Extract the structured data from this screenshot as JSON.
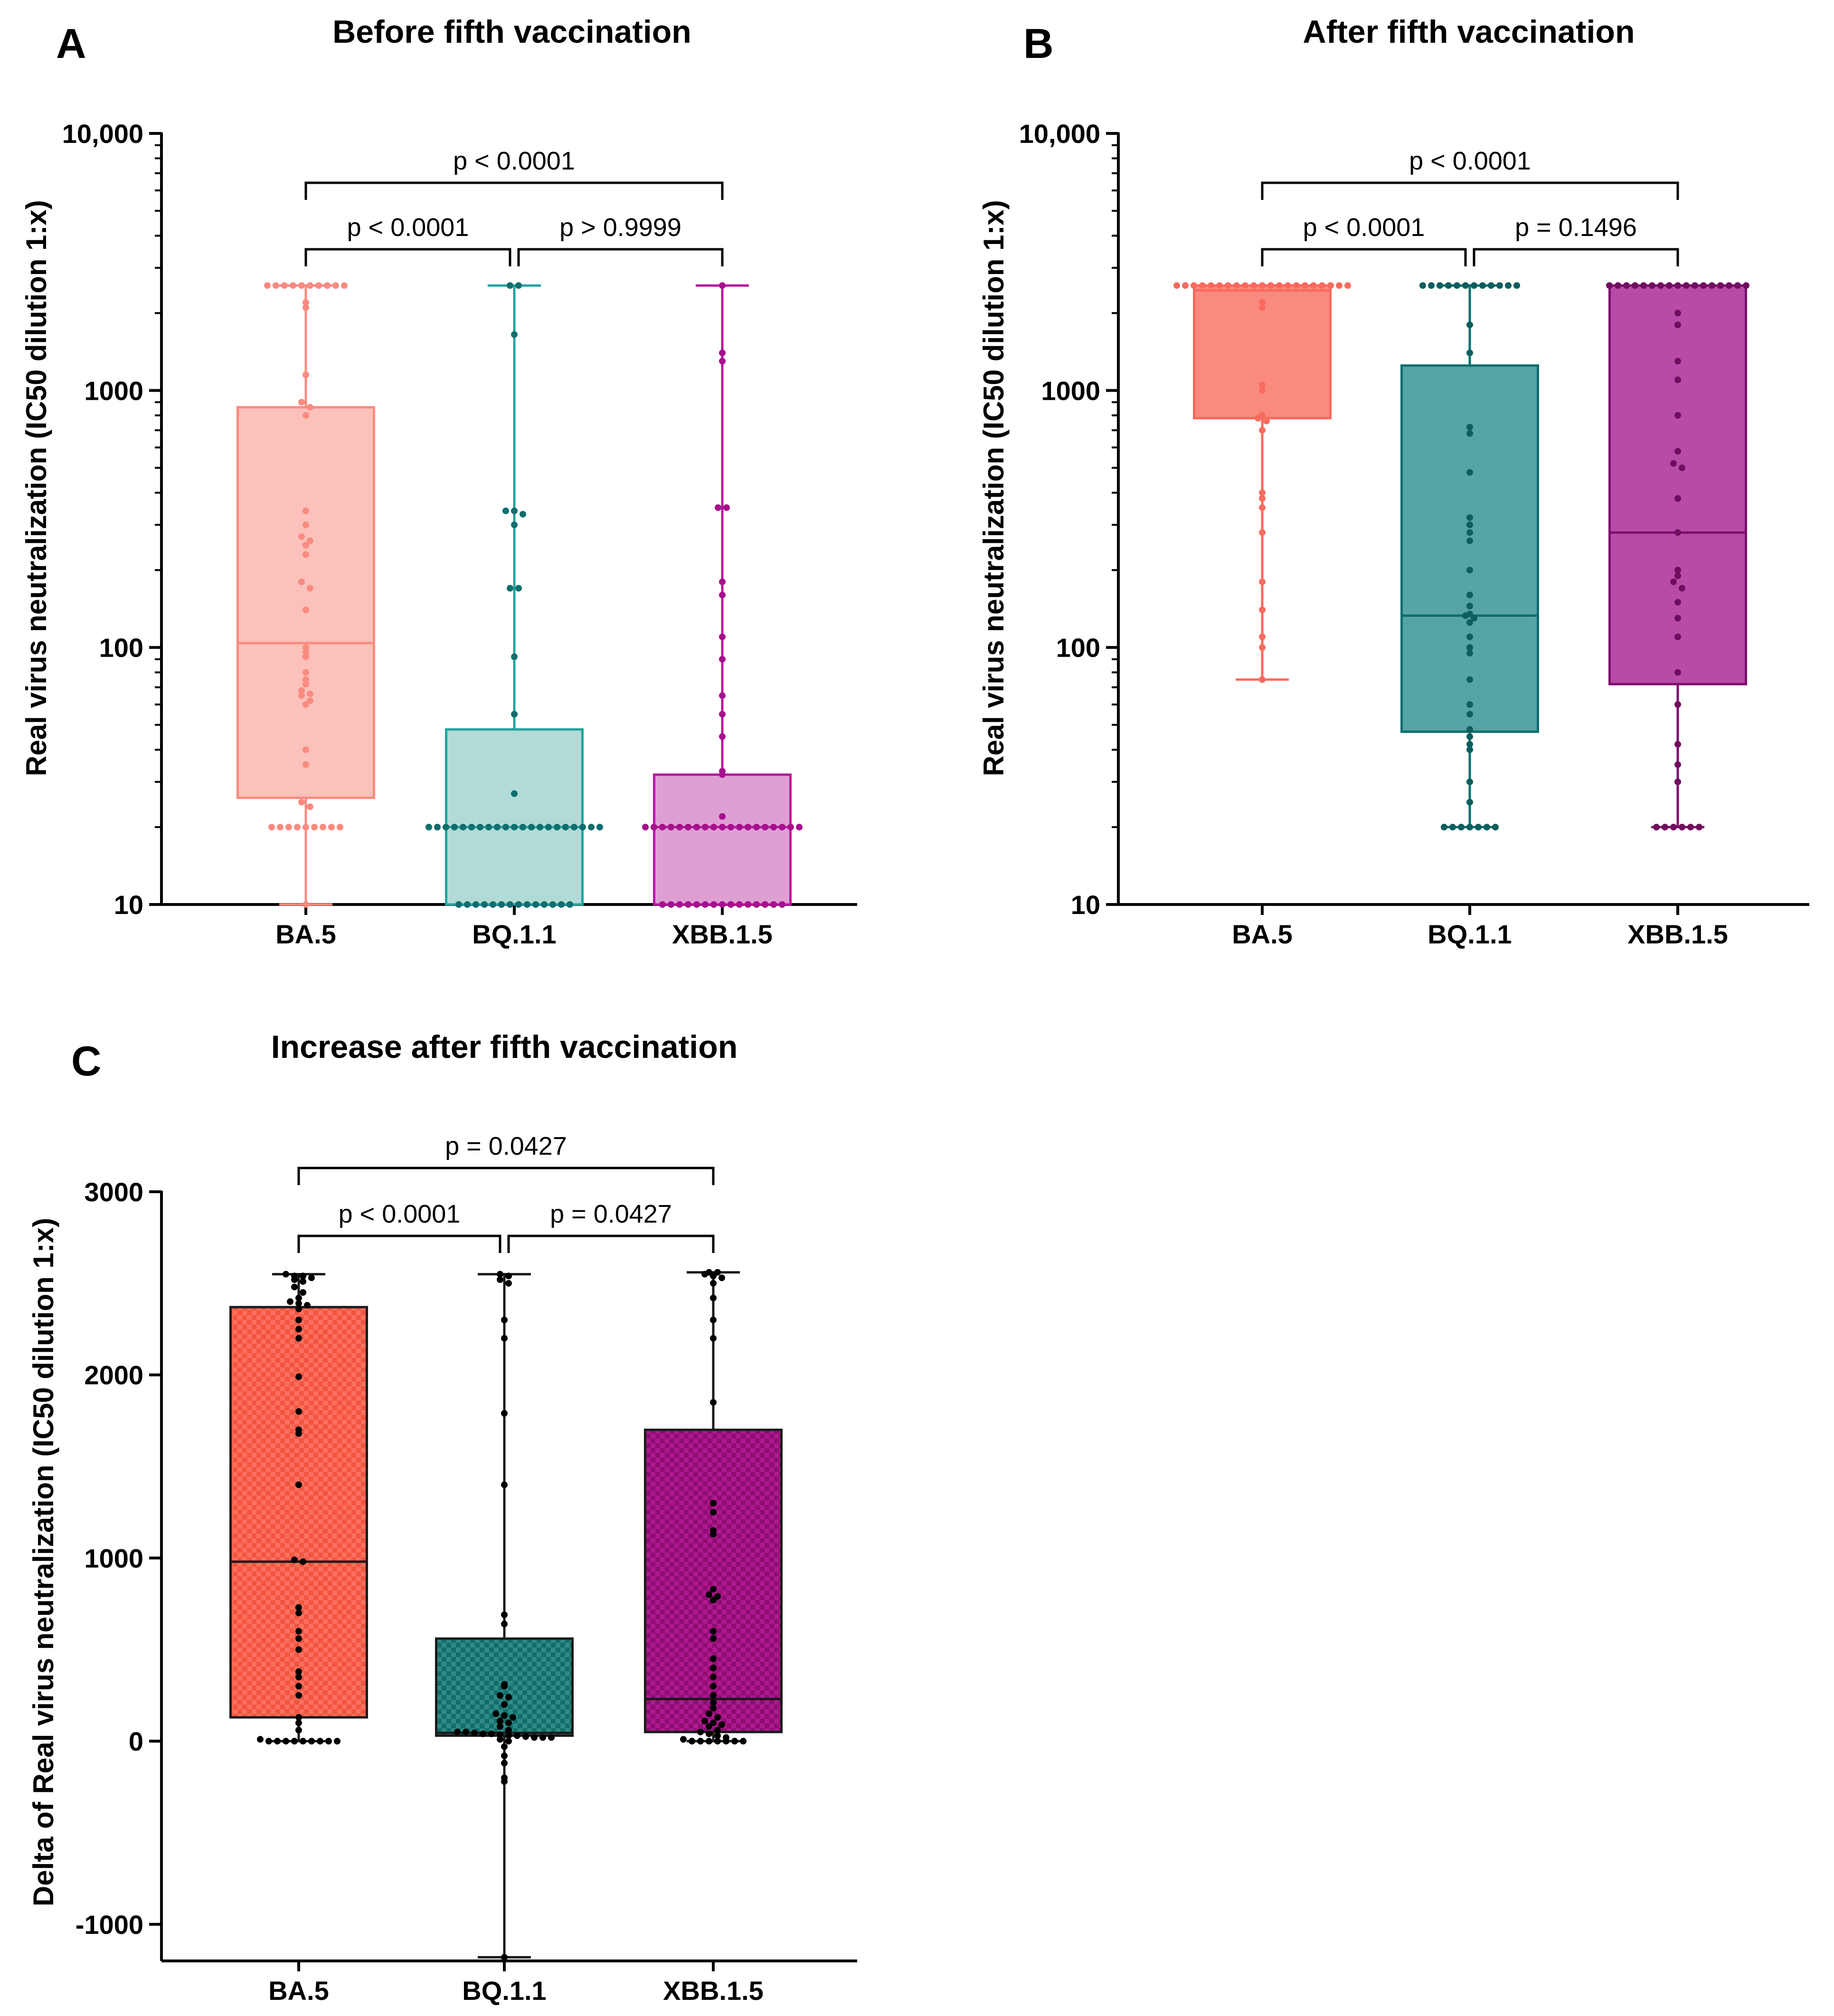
{
  "chart_data": [
    {
      "panel_label": "A",
      "type": "box",
      "title": "Before fifth vaccination",
      "xlabel": "",
      "ylabel": "Real virus neutralization (IC50 dilution 1:x)",
      "yscale": "log",
      "ylim": [
        10,
        10000
      ],
      "yticks": [
        10,
        100,
        1000,
        10000
      ],
      "ytick_labels": [
        "10",
        "100",
        "1000",
        "10,000"
      ],
      "categories": [
        "BA.5",
        "BQ.1.1",
        "XBB.1.5"
      ],
      "style": {
        "pale": true,
        "pattern": false
      },
      "colors": {
        "fill": [
          "#FBC1BA",
          "#B2DBD8",
          "#DEA0D3"
        ],
        "stroke": [
          "#F98B80",
          "#24A3A0",
          "#B7199E"
        ],
        "point": [
          "#F98B80",
          "#0F6E6E",
          "#A6108E"
        ]
      },
      "series": [
        {
          "name": "BA.5",
          "min": 10,
          "q1": 26,
          "median": 104,
          "q3": 860,
          "max": 2560,
          "points": [
            2560,
            2560,
            2560,
            2560,
            2560,
            2560,
            2560,
            2560,
            2560,
            2560,
            2200,
            2100,
            1150,
            900,
            860,
            800,
            340,
            300,
            270,
            260,
            250,
            230,
            180,
            170,
            140,
            100,
            96,
            92,
            80,
            75,
            72,
            68,
            66,
            65,
            62,
            60,
            40,
            35,
            25,
            24,
            20,
            20,
            20,
            20,
            20,
            20,
            20,
            20,
            20,
            10
          ]
        },
        {
          "name": "BQ.1.1",
          "min": 10,
          "q1": 10,
          "median": 20,
          "q3": 48,
          "max": 2560,
          "points": [
            2560,
            2560,
            1650,
            340,
            340,
            330,
            300,
            170,
            170,
            92,
            55,
            27,
            20,
            20,
            20,
            20,
            20,
            20,
            20,
            20,
            20,
            20,
            20,
            20,
            20,
            20,
            20,
            20,
            20,
            20,
            20,
            20,
            20,
            10,
            10,
            10,
            10,
            10,
            10,
            10,
            10,
            10,
            10,
            10,
            10,
            10,
            10
          ]
        },
        {
          "name": "XBB.1.5",
          "min": 10,
          "q1": 10,
          "median": 20,
          "q3": 32,
          "max": 2560,
          "points": [
            2560,
            1400,
            1300,
            350,
            350,
            180,
            160,
            110,
            90,
            65,
            55,
            45,
            33,
            32,
            22,
            20,
            20,
            20,
            20,
            20,
            20,
            20,
            20,
            20,
            20,
            20,
            20,
            20,
            20,
            20,
            20,
            20,
            20,
            20,
            10,
            10,
            10,
            10,
            10,
            10,
            10,
            10,
            10,
            10,
            10,
            10,
            10,
            10,
            10
          ]
        }
      ],
      "annotations": [
        {
          "from": "BA.5",
          "to": "XBB.1.5",
          "text": "p < 0.0001",
          "level": 2
        },
        {
          "from": "BA.5",
          "to": "BQ.1.1",
          "text": "p < 0.0001",
          "level": 1
        },
        {
          "from": "BQ.1.1",
          "to": "XBB.1.5",
          "text": "p > 0.9999",
          "level": 1
        }
      ]
    },
    {
      "panel_label": "B",
      "type": "box",
      "title": "After fifth vaccination",
      "xlabel": "",
      "ylabel": "Real virus neutralization (IC50 dilution 1:x)",
      "yscale": "log",
      "ylim": [
        10,
        10000
      ],
      "yticks": [
        10,
        100,
        1000,
        10000
      ],
      "ytick_labels": [
        "10",
        "100",
        "1000",
        "10,000"
      ],
      "categories": [
        "BA.5",
        "BQ.1.1",
        "XBB.1.5"
      ],
      "style": {
        "pale": false,
        "pattern": false
      },
      "colors": {
        "fill": [
          "#FA8A7E",
          "#55A5A4",
          "#B94BA8"
        ],
        "stroke": [
          "#F86B5E",
          "#0F6E6E",
          "#7F0F6C"
        ],
        "point": [
          "#F86B5E",
          "#0D5E5E",
          "#6F0D5E"
        ]
      },
      "series": [
        {
          "name": "BA.5",
          "min": 75,
          "q1": 780,
          "median": 2450,
          "q3": 2560,
          "max": 2560,
          "points": [
            2560,
            2560,
            2560,
            2560,
            2560,
            2560,
            2560,
            2560,
            2560,
            2560,
            2560,
            2560,
            2560,
            2560,
            2560,
            2560,
            2560,
            2560,
            2560,
            2560,
            2560,
            2200,
            2100,
            1050,
            1000,
            800,
            780,
            760,
            700,
            400,
            380,
            350,
            280,
            180,
            140,
            110,
            100,
            75
          ]
        },
        {
          "name": "BQ.1.1",
          "min": 20,
          "q1": 47,
          "median": 133,
          "q3": 1250,
          "max": 2560,
          "points": [
            2560,
            2560,
            2560,
            2560,
            2560,
            2560,
            2560,
            2560,
            2560,
            2560,
            2560,
            2560,
            1800,
            1400,
            720,
            680,
            480,
            320,
            300,
            280,
            260,
            200,
            160,
            145,
            135,
            133,
            130,
            125,
            110,
            100,
            95,
            75,
            60,
            55,
            48,
            45,
            42,
            40,
            30,
            25,
            20,
            20,
            20,
            20,
            20,
            20,
            20
          ]
        },
        {
          "name": "XBB.1.5",
          "min": 20,
          "q1": 72,
          "median": 280,
          "q3": 2560,
          "max": 2560,
          "points": [
            2560,
            2560,
            2560,
            2560,
            2560,
            2560,
            2560,
            2560,
            2560,
            2560,
            2560,
            2560,
            2560,
            2560,
            2560,
            2560,
            2560,
            2000,
            1800,
            1300,
            1100,
            800,
            580,
            520,
            500,
            380,
            280,
            200,
            190,
            180,
            170,
            150,
            130,
            110,
            80,
            60,
            42,
            35,
            30,
            20,
            20,
            20,
            20,
            20,
            20
          ]
        }
      ],
      "annotations": [
        {
          "from": "BA.5",
          "to": "XBB.1.5",
          "text": "p < 0.0001",
          "level": 2
        },
        {
          "from": "BA.5",
          "to": "BQ.1.1",
          "text": "p < 0.0001",
          "level": 1
        },
        {
          "from": "BQ.1.1",
          "to": "XBB.1.5",
          "text": "p = 0.1496",
          "level": 1
        }
      ]
    },
    {
      "panel_label": "C",
      "type": "box",
      "title": "Increase after fifth vaccination",
      "xlabel": "",
      "ylabel": "Delta of Real virus neutralization (IC50 dilution 1:x)",
      "yscale": "linear",
      "ylim": [
        -1200,
        3000
      ],
      "yticks": [
        -1000,
        0,
        1000,
        2000,
        3000
      ],
      "ytick_labels": [
        "-1000",
        "0",
        "1000",
        "2000",
        "3000"
      ],
      "categories": [
        "BA.5",
        "BQ.1.1",
        "XBB.1.5"
      ],
      "style": {
        "pale": false,
        "pattern": true
      },
      "colors": {
        "fill": [
          "#FA6F5E",
          "#2E8B86",
          "#B0188F"
        ],
        "stroke": [
          "#1a1a1a",
          "#1a1a1a",
          "#1a1a1a"
        ],
        "point": [
          "#000000",
          "#000000",
          "#000000"
        ]
      },
      "series": [
        {
          "name": "BA.5",
          "min": 0,
          "q1": 130,
          "median": 980,
          "q3": 2370,
          "max": 2550,
          "points": [
            2550,
            2540,
            2540,
            2530,
            2520,
            2510,
            2480,
            2450,
            2420,
            2400,
            2390,
            2380,
            2360,
            2300,
            2250,
            2200,
            1990,
            1800,
            1700,
            1680,
            1400,
            990,
            980,
            730,
            700,
            600,
            560,
            500,
            380,
            350,
            300,
            250,
            130,
            100,
            60,
            10,
            0,
            0,
            0,
            0,
            0,
            0,
            0,
            0,
            0
          ]
        },
        {
          "name": "BQ.1.1",
          "min": -1180,
          "q1": 30,
          "median": 45,
          "q3": 560,
          "max": 2550,
          "points": [
            2550,
            2540,
            2520,
            2500,
            2300,
            2200,
            1790,
            1400,
            690,
            640,
            310,
            300,
            250,
            240,
            200,
            150,
            140,
            130,
            110,
            100,
            80,
            60,
            50,
            50,
            45,
            40,
            40,
            35,
            30,
            30,
            25,
            20,
            20,
            20,
            10,
            0,
            -30,
            -80,
            -120,
            -200,
            -220,
            -1180
          ]
        },
        {
          "name": "XBB.1.5",
          "min": 0,
          "q1": 50,
          "median": 230,
          "q3": 1700,
          "max": 2560,
          "points": [
            2560,
            2560,
            2550,
            2540,
            2530,
            2500,
            2420,
            2300,
            2200,
            1850,
            1300,
            1250,
            1150,
            1130,
            830,
            800,
            790,
            770,
            600,
            560,
            450,
            400,
            350,
            300,
            250,
            210,
            180,
            150,
            130,
            110,
            100,
            90,
            80,
            60,
            50,
            40,
            30,
            20,
            10,
            0,
            0,
            0,
            0,
            0,
            0,
            0
          ]
        }
      ],
      "annotations": [
        {
          "from": "BA.5",
          "to": "XBB.1.5",
          "text": "p = 0.0427",
          "level": 2
        },
        {
          "from": "BA.5",
          "to": "BQ.1.1",
          "text": "p < 0.0001",
          "level": 1
        },
        {
          "from": "BQ.1.1",
          "to": "XBB.1.5",
          "text": "p = 0.0427",
          "level": 1
        }
      ]
    }
  ]
}
